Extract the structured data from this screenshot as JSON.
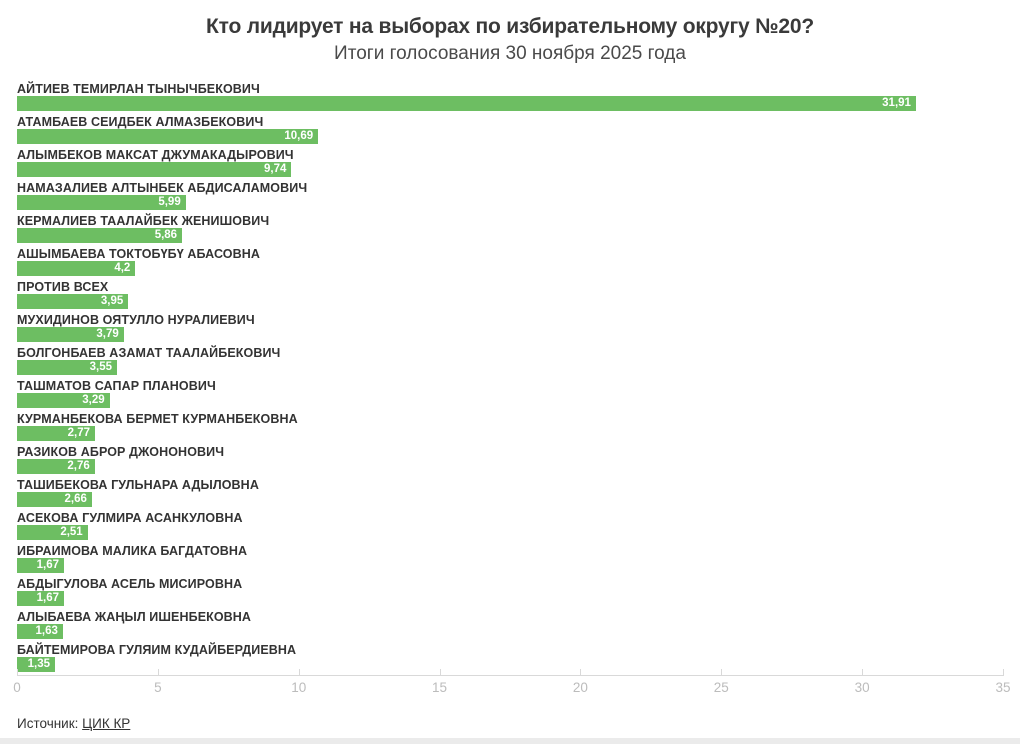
{
  "header": {
    "title": "Кто лидирует на выборах по избирательному округу №20?",
    "subtitle": "Итоги голосования 30 ноября 2025 года"
  },
  "chart_data": {
    "type": "bar",
    "orientation": "horizontal",
    "title": "Кто лидирует на выборах по избирательному округу №20?",
    "subtitle": "Итоги голосования 30 ноября 2025 года",
    "xlim": [
      0,
      35
    ],
    "x_ticks": [
      0,
      5,
      10,
      15,
      20,
      25,
      30,
      35
    ],
    "grid": false,
    "legend": "none",
    "bar_color": "#6dbe62",
    "label_color": "#333333",
    "value_text_color": "#ffffff",
    "axis_text_color": "#bcbcbc",
    "categories": [
      "АЙТИЕВ ТЕМИРЛАН ТЫНЫЧБЕКОВИЧ",
      "АТАМБАЕВ СЕИДБЕК АЛМАЗБЕКОВИЧ",
      "АЛЫМБЕКОВ МАКСАТ ДЖУМАКАДЫРОВИЧ",
      "НАМАЗАЛИЕВ АЛТЫНБЕК АБДИСАЛАМОВИЧ",
      "КЕРМАЛИЕВ ТААЛАЙБЕК ЖЕНИШОВИЧ",
      "АШЫМБАЕВА ТОКТОБҮБҮ АБАСОВНА",
      "ПРОТИВ ВСЕХ",
      "МУХИДИНОВ ОЯТУЛЛО НУРАЛИЕВИЧ",
      "БОЛГОНБАЕВ АЗАМАТ ТААЛАЙБЕКОВИЧ",
      "ТАШМАТОВ САПАР ПЛАНОВИЧ",
      "КУРМАНБЕКОВА БЕРМЕТ КУРМАНБЕКОВНА",
      "РАЗИКОВ АБРОР ДЖОНОНОВИЧ",
      "ТАШИБЕКОВА ГУЛЬНАРА АДЫЛОВНА",
      "АСЕКОВА ГУЛМИРА АСАНКУЛОВНА",
      "ИБРАИМОВА МАЛИКА БАГДАТОВНА",
      "АБДЫГУЛОВА АСЕЛЬ МИСИРОВНА",
      "АЛЫБАЕВА ЖАҢЫЛ ИШЕНБЕКОВНА",
      "БАЙТЕМИРОВА ГУЛЯИМ КУДАЙБЕРДИЕВНА"
    ],
    "values": [
      31.91,
      10.69,
      9.74,
      5.99,
      5.86,
      4.2,
      3.95,
      3.79,
      3.55,
      3.29,
      2.77,
      2.76,
      2.66,
      2.51,
      1.67,
      1.67,
      1.63,
      1.35
    ],
    "value_labels": [
      "31,91",
      "10,69",
      "9,74",
      "5,99",
      "5,86",
      "4,2",
      "3,95",
      "3,79",
      "3,55",
      "3,29",
      "2,77",
      "2,76",
      "2,66",
      "2,51",
      "1,67",
      "1,67",
      "1,63",
      "1,35"
    ]
  },
  "footer": {
    "source_label": "Источник: ",
    "source_link": "ЦИК КР"
  }
}
